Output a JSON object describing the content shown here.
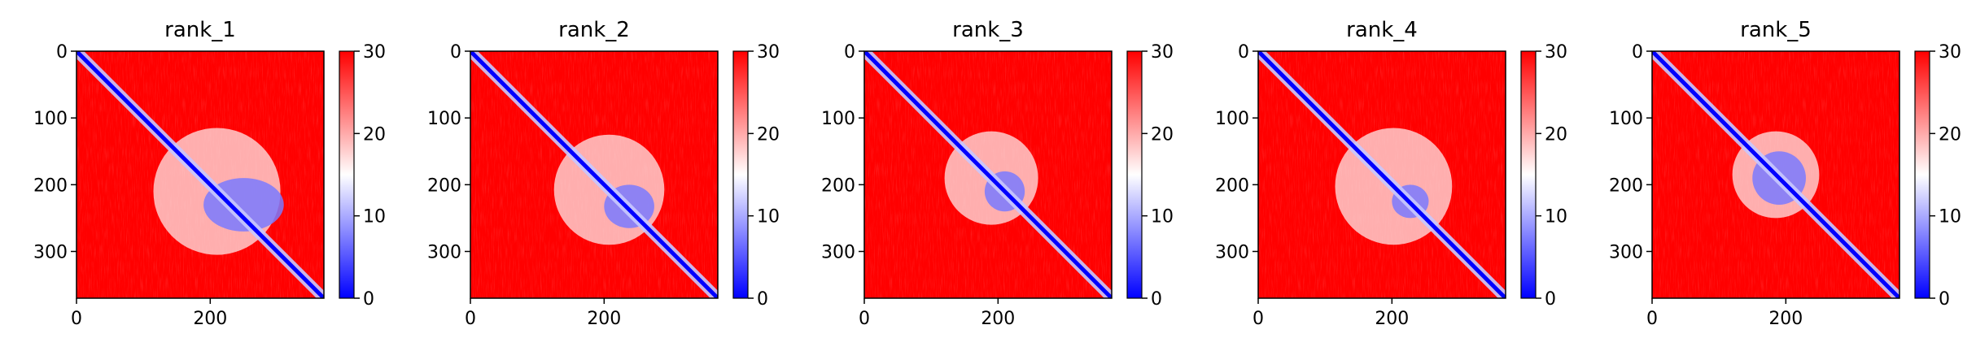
{
  "figure": {
    "panels": [
      {
        "title": "rank_1"
      },
      {
        "title": "rank_2"
      },
      {
        "title": "rank_3"
      },
      {
        "title": "rank_4"
      },
      {
        "title": "rank_5"
      }
    ]
  },
  "chart_data": [
    {
      "type": "heatmap",
      "title": "rank_1",
      "xlabel": "",
      "ylabel": "",
      "xlim": [
        0,
        370
      ],
      "ylim": [
        370,
        0
      ],
      "xticks": [
        0,
        200
      ],
      "yticks": [
        0,
        100,
        200,
        300
      ],
      "colorbar": {
        "range": [
          0,
          30
        ],
        "ticks": [
          0,
          10,
          20,
          30
        ],
        "colormap": "bwr",
        "low_color": "#0000ff",
        "mid_color": "#ffffff",
        "high_color": "#ff0000"
      },
      "matrix_size": 370,
      "low_value_regions": [
        {
          "x_range": [
            115,
            305
          ],
          "y_range": [
            115,
            305
          ],
          "level": "low"
        },
        {
          "x_range": [
            190,
            310
          ],
          "y_range": [
            190,
            270
          ],
          "level": "very-low"
        }
      ],
      "diagonal_value": 0
    },
    {
      "type": "heatmap",
      "title": "rank_2",
      "xlabel": "",
      "ylabel": "",
      "xlim": [
        0,
        370
      ],
      "ylim": [
        370,
        0
      ],
      "xticks": [
        0,
        200
      ],
      "yticks": [
        0,
        100,
        200,
        300
      ],
      "colorbar": {
        "range": [
          0,
          30
        ],
        "ticks": [
          0,
          10,
          20,
          30
        ],
        "colormap": "bwr",
        "low_color": "#0000ff",
        "mid_color": "#ffffff",
        "high_color": "#ff0000"
      },
      "matrix_size": 370,
      "low_value_regions": [
        {
          "x_range": [
            125,
            290
          ],
          "y_range": [
            125,
            290
          ],
          "level": "low"
        },
        {
          "x_range": [
            200,
            275
          ],
          "y_range": [
            200,
            265
          ],
          "level": "very-low"
        }
      ],
      "diagonal_value": 0
    },
    {
      "type": "heatmap",
      "title": "rank_3",
      "xlabel": "",
      "ylabel": "",
      "xlim": [
        0,
        370
      ],
      "ylim": [
        370,
        0
      ],
      "xticks": [
        0,
        200
      ],
      "yticks": [
        0,
        100,
        200,
        300
      ],
      "colorbar": {
        "range": [
          0,
          30
        ],
        "ticks": [
          0,
          10,
          20,
          30
        ],
        "colormap": "bwr",
        "low_color": "#0000ff",
        "mid_color": "#ffffff",
        "high_color": "#ff0000"
      },
      "matrix_size": 370,
      "low_value_regions": [
        {
          "x_range": [
            120,
            260
          ],
          "y_range": [
            120,
            260
          ],
          "level": "low"
        },
        {
          "x_range": [
            180,
            240
          ],
          "y_range": [
            180,
            240
          ],
          "level": "very-low"
        }
      ],
      "diagonal_value": 0
    },
    {
      "type": "heatmap",
      "title": "rank_4",
      "xlabel": "",
      "ylabel": "",
      "xlim": [
        0,
        370
      ],
      "ylim": [
        370,
        0
      ],
      "xticks": [
        0,
        200
      ],
      "yticks": [
        0,
        100,
        200,
        300
      ],
      "colorbar": {
        "range": [
          0,
          30
        ],
        "ticks": [
          0,
          10,
          20,
          30
        ],
        "colormap": "bwr",
        "low_color": "#0000ff",
        "mid_color": "#ffffff",
        "high_color": "#ff0000"
      },
      "matrix_size": 370,
      "low_value_regions": [
        {
          "x_range": [
            115,
            290
          ],
          "y_range": [
            115,
            290
          ],
          "level": "low"
        },
        {
          "x_range": [
            200,
            255
          ],
          "y_range": [
            200,
            250
          ],
          "level": "very-low"
        }
      ],
      "diagonal_value": 0
    },
    {
      "type": "heatmap",
      "title": "rank_5",
      "xlabel": "",
      "ylabel": "",
      "xlim": [
        0,
        370
      ],
      "ylim": [
        370,
        0
      ],
      "xticks": [
        0,
        200
      ],
      "yticks": [
        0,
        100,
        200,
        300
      ],
      "colorbar": {
        "range": [
          0,
          30
        ],
        "ticks": [
          0,
          10,
          20,
          30
        ],
        "colormap": "bwr",
        "low_color": "#0000ff",
        "mid_color": "#ffffff",
        "high_color": "#ff0000"
      },
      "matrix_size": 370,
      "low_value_regions": [
        {
          "x_range": [
            120,
            250
          ],
          "y_range": [
            120,
            250
          ],
          "level": "low"
        },
        {
          "x_range": [
            150,
            230
          ],
          "y_range": [
            150,
            230
          ],
          "level": "very-low"
        }
      ],
      "diagonal_value": 0
    }
  ]
}
